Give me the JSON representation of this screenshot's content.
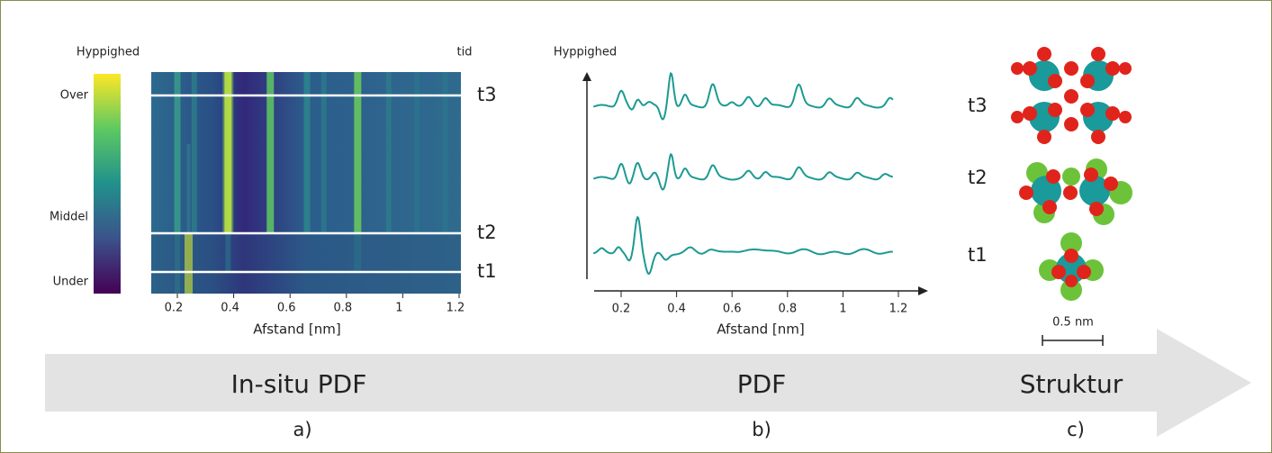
{
  "panel_a": {
    "colorbar_title": "Hyppighed",
    "colorbar_labels": [
      "Over",
      "Middel",
      "Under"
    ],
    "time_label": "tid",
    "time_markers": [
      "t3",
      "t2",
      "t1"
    ],
    "x_ticks": [
      "0.2",
      "0.4",
      "0.6",
      "0.8",
      "1",
      "1.2"
    ],
    "x_label": "Afstand [nm]"
  },
  "panel_b": {
    "y_label": "Hyppighed",
    "curve_labels": [
      "t3",
      "t2",
      "t1"
    ],
    "x_ticks": [
      "0.2",
      "0.4",
      "0.6",
      "0.8",
      "1",
      "1.2"
    ],
    "x_label": "Afstand [nm]"
  },
  "panel_c": {
    "scale_bar": "0.5 nm"
  },
  "arrow": {
    "stages": [
      "In-situ PDF",
      "PDF",
      "Struktur"
    ]
  },
  "panel_labels": [
    "a)",
    "b)",
    "c)"
  ]
}
